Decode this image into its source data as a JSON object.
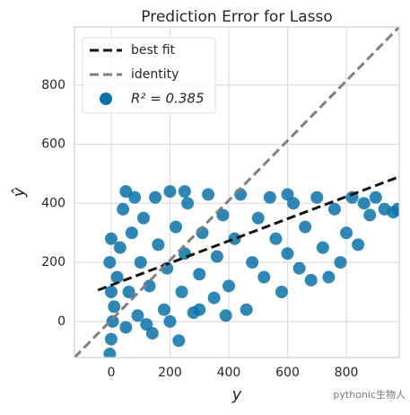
{
  "chart_data": {
    "type": "scatter",
    "title": "Prediction Error for Lasso",
    "x_label": "y",
    "y_label": "ŷ",
    "xlim": [
      -125,
      980
    ],
    "ylim": [
      -122,
      997
    ],
    "xticks": [
      0,
      200,
      400,
      600,
      800
    ],
    "yticks": [
      0,
      200,
      400,
      600,
      800
    ],
    "grid": true,
    "legend": "upper left",
    "series": [
      {
        "name": "best fit",
        "color": "#111111",
        "style": "dashed",
        "x": [
          -45,
          980
        ],
        "values": [
          106,
          490
        ]
      },
      {
        "name": "identity",
        "color": "#808080",
        "style": "dashed",
        "x": [
          -125,
          980
        ],
        "values": [
          -122,
          997
        ]
      },
      {
        "name": "R² = 0.385",
        "color": "#0b72a8",
        "style": "points",
        "x": [
          -5,
          0,
          5,
          0,
          -5,
          0,
          10,
          20,
          30,
          40,
          50,
          60,
          70,
          80,
          90,
          100,
          110,
          120,
          130,
          150,
          160,
          180,
          190,
          200,
          220,
          230,
          240,
          250,
          260,
          280,
          300,
          310,
          330,
          350,
          360,
          380,
          400,
          420,
          440,
          460,
          480,
          500,
          520,
          540,
          560,
          580,
          600,
          620,
          640,
          660,
          680,
          700,
          720,
          740,
          760,
          780,
          800,
          820,
          840,
          860,
          880,
          900,
          930,
          960,
          975,
          390,
          300,
          200,
          140,
          600,
          50,
          250
        ],
        "values": [
          -110,
          -60,
          0,
          100,
          200,
          280,
          50,
          150,
          250,
          380,
          -20,
          100,
          300,
          420,
          20,
          200,
          350,
          -10,
          120,
          420,
          260,
          40,
          180,
          440,
          320,
          -65,
          100,
          230,
          400,
          30,
          160,
          300,
          430,
          80,
          220,
          360,
          120,
          280,
          430,
          40,
          200,
          350,
          150,
          420,
          280,
          100,
          230,
          400,
          180,
          320,
          140,
          420,
          250,
          150,
          380,
          200,
          300,
          420,
          260,
          400,
          360,
          420,
          380,
          370,
          380,
          20,
          40,
          0,
          -40,
          430,
          440,
          440
        ]
      }
    ],
    "annotations": [
      "pythonic生物人"
    ]
  }
}
